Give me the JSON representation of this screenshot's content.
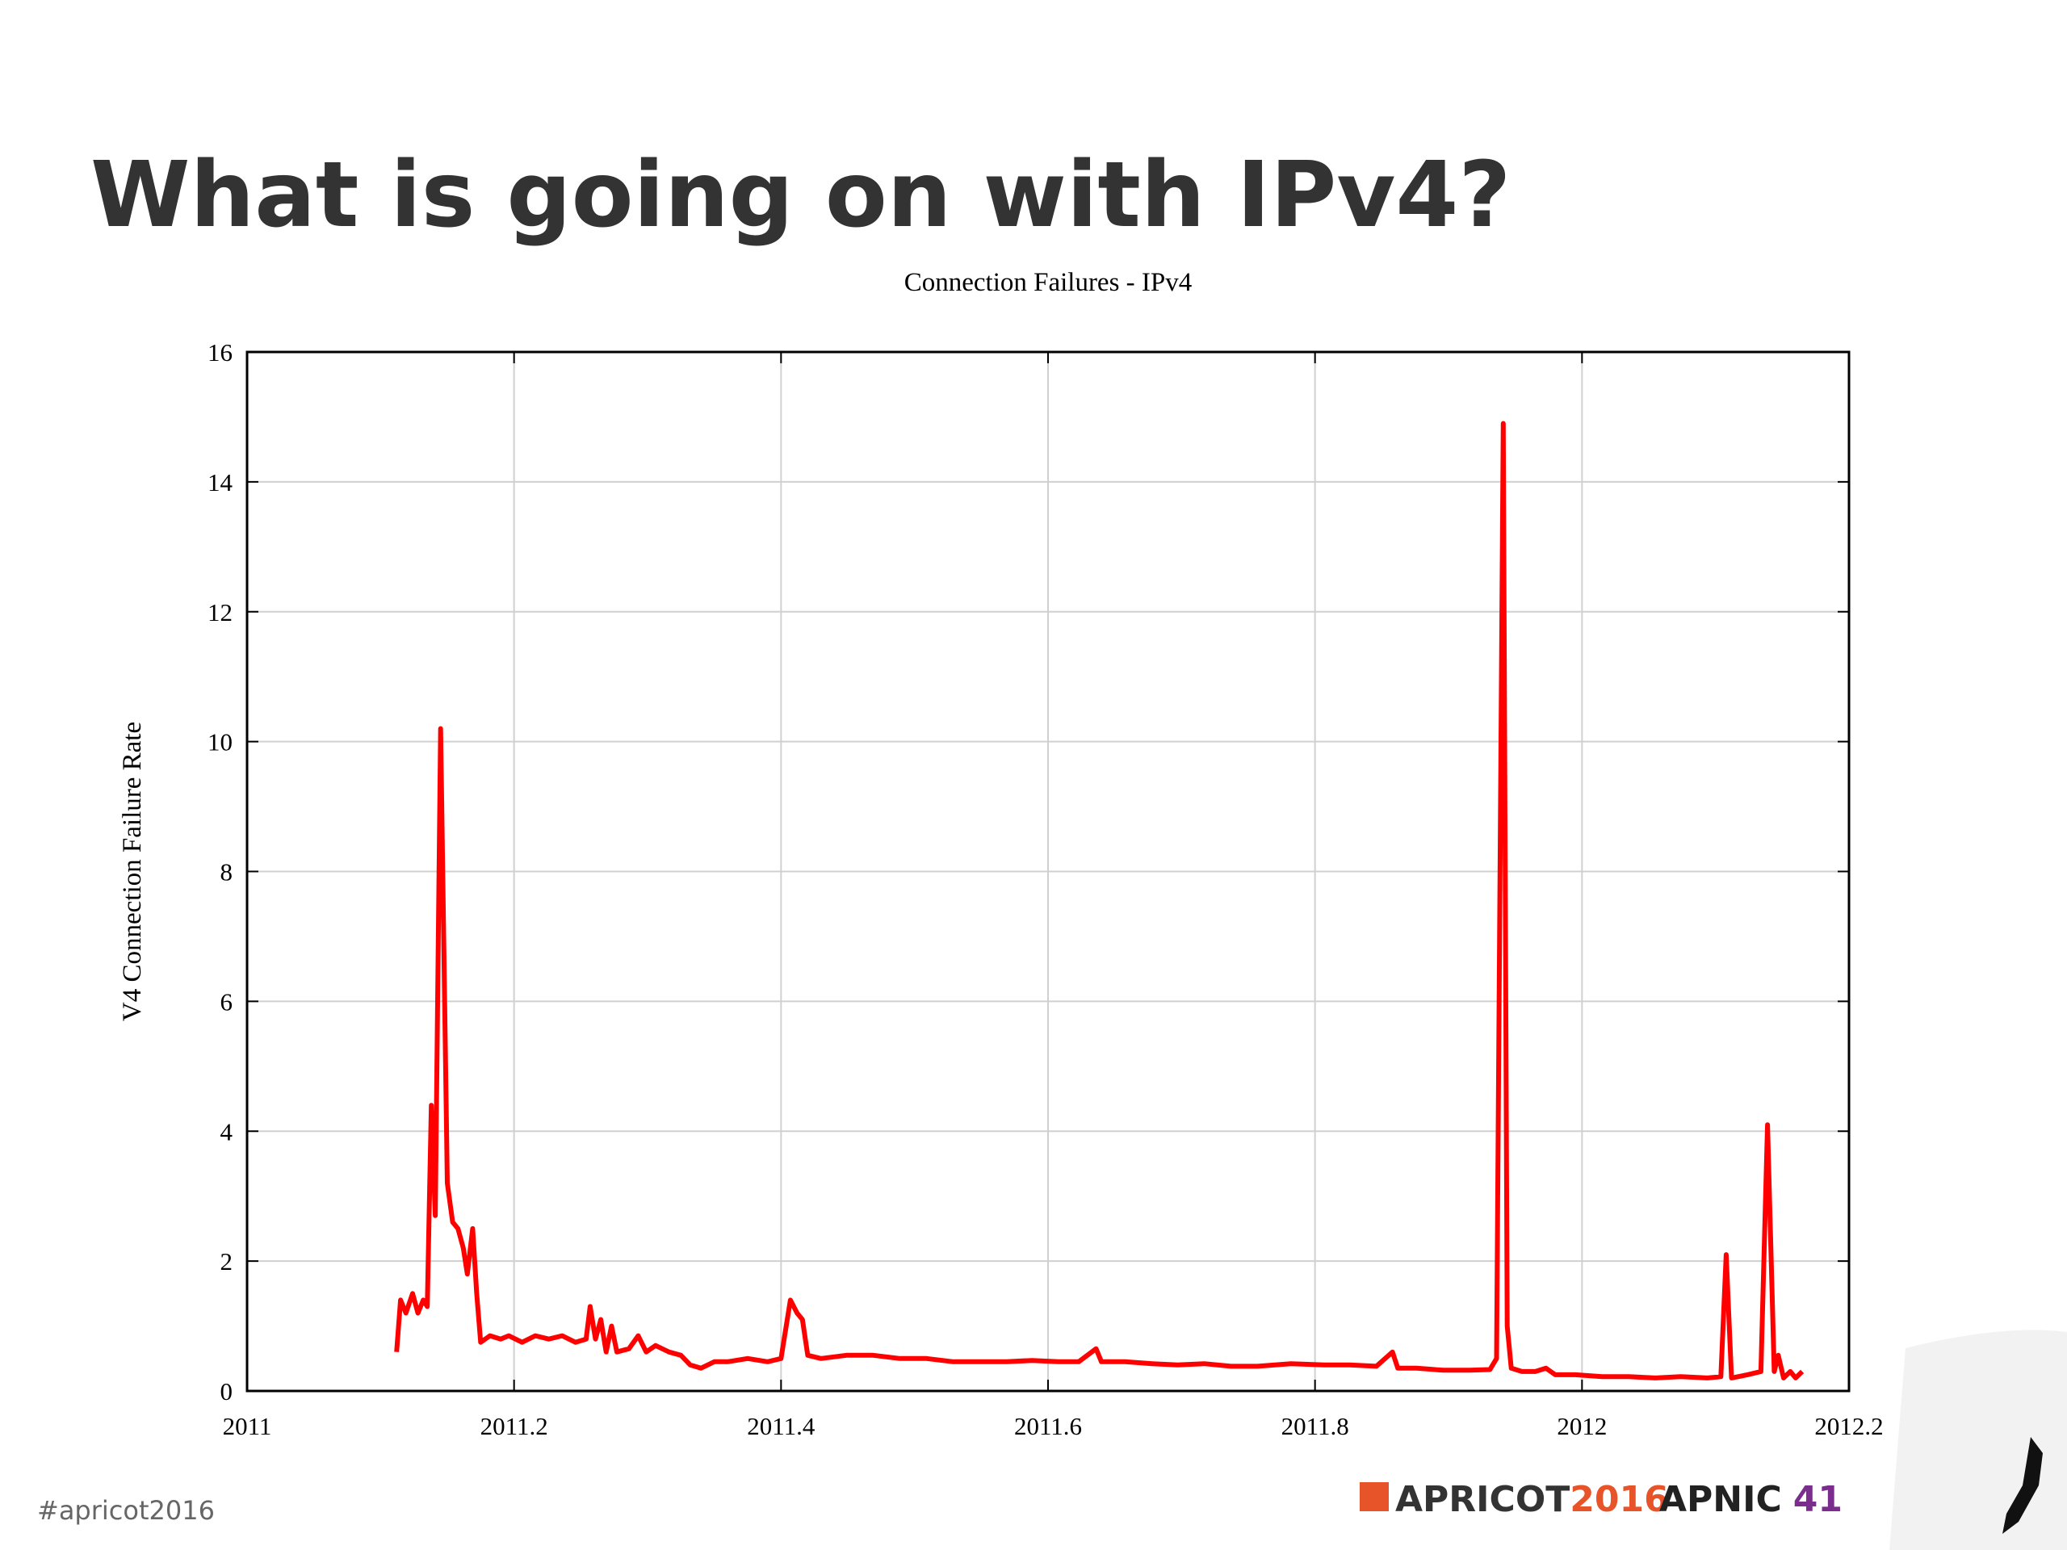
{
  "slide": {
    "title": "What is going on with IPv4?",
    "hashtag": "#apricot2016",
    "logo_apricot": "APRICOT",
    "logo_apricot_year": "2016",
    "logo_apnic": "APNIC",
    "logo_apnic_number": "41"
  },
  "chart_data": {
    "type": "line",
    "title": "Connection Failures - IPv4",
    "ylabel": "V4 Connection Failure Rate",
    "color": "#ff0000",
    "grid": true,
    "xlim": [
      2011,
      2012.2
    ],
    "xticks": [
      2011,
      2011.2,
      2011.4,
      2011.6,
      2011.8,
      2012,
      2012.2
    ],
    "ylim": [
      0,
      16
    ],
    "yticks": [
      0,
      2,
      4,
      6,
      8,
      10,
      12,
      14,
      16
    ],
    "x": [
      2011.112,
      2011.115,
      2011.119,
      2011.124,
      2011.128,
      2011.132,
      2011.135,
      2011.138,
      2011.141,
      2011.145,
      2011.148,
      2011.15,
      2011.154,
      2011.158,
      2011.162,
      2011.165,
      2011.169,
      2011.172,
      2011.175,
      2011.182,
      2011.19,
      2011.196,
      2011.206,
      2011.216,
      2011.226,
      2011.236,
      2011.246,
      2011.254,
      2011.257,
      2011.261,
      2011.265,
      2011.269,
      2011.273,
      2011.277,
      2011.286,
      2011.293,
      2011.299,
      2011.306,
      2011.316,
      2011.325,
      2011.332,
      2011.34,
      2011.35,
      2011.36,
      2011.375,
      2011.39,
      2011.4,
      2011.407,
      2011.412,
      2011.416,
      2011.42,
      2011.43,
      2011.449,
      2011.469,
      2011.489,
      2011.509,
      2011.529,
      2011.549,
      2011.569,
      2011.588,
      2011.608,
      2011.623,
      2011.636,
      2011.64,
      2011.658,
      2011.678,
      2011.697,
      2011.717,
      2011.737,
      2011.757,
      2011.782,
      2011.807,
      2011.826,
      2011.846,
      2011.858,
      2011.862,
      2011.876,
      2011.896,
      2011.916,
      2011.931,
      2011.936,
      2011.941,
      2011.944,
      2011.947,
      2011.955,
      2011.965,
      2011.973,
      2011.98,
      2011.995,
      2012.015,
      2012.035,
      2012.055,
      2012.074,
      2012.094,
      2012.104,
      2012.108,
      2012.112,
      2012.124,
      2012.134,
      2012.139,
      2012.144,
      2012.147,
      2012.151,
      2012.156,
      2012.16,
      2012.165
    ],
    "values": [
      0.6,
      1.4,
      1.2,
      1.5,
      1.2,
      1.4,
      1.3,
      4.4,
      2.7,
      10.2,
      6,
      3.2,
      2.6,
      2.5,
      2.2,
      1.8,
      2.5,
      1.5,
      0.75,
      0.85,
      0.8,
      0.85,
      0.75,
      0.85,
      0.8,
      0.85,
      0.75,
      0.8,
      1.3,
      0.8,
      1.1,
      0.6,
      1.0,
      0.6,
      0.65,
      0.85,
      0.6,
      0.7,
      0.6,
      0.55,
      0.4,
      0.35,
      0.45,
      0.45,
      0.5,
      0.45,
      0.5,
      1.4,
      1.2,
      1.1,
      0.55,
      0.5,
      0.55,
      0.55,
      0.5,
      0.5,
      0.45,
      0.45,
      0.45,
      0.47,
      0.45,
      0.45,
      0.65,
      0.45,
      0.45,
      0.42,
      0.4,
      0.42,
      0.38,
      0.38,
      0.42,
      0.4,
      0.4,
      0.38,
      0.6,
      0.35,
      0.35,
      0.32,
      0.32,
      0.33,
      0.5,
      14.9,
      1.0,
      0.35,
      0.3,
      0.3,
      0.35,
      0.25,
      0.25,
      0.22,
      0.22,
      0.2,
      0.22,
      0.2,
      0.22,
      2.1,
      0.2,
      0.25,
      0.3,
      4.1,
      0.3,
      0.55,
      0.2,
      0.3,
      0.2,
      0.3
    ]
  }
}
